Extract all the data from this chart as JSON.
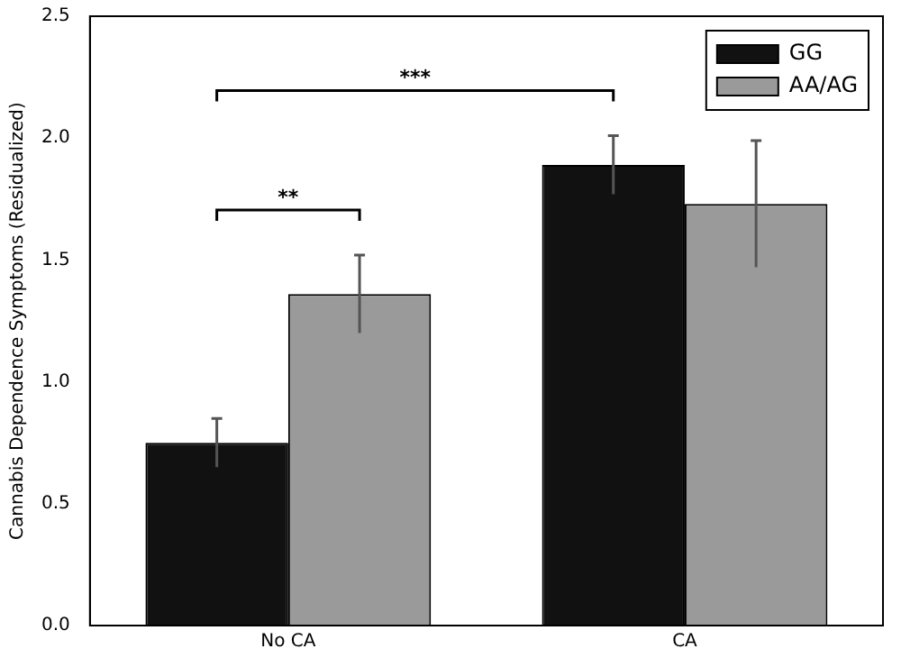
{
  "chart_data": {
    "type": "bar",
    "ylabel": "Cannabis Dependence Symptoms (Residualized)",
    "categories": [
      "No CA",
      "CA"
    ],
    "series": [
      {
        "name": "GG",
        "color": "#111111",
        "values": [
          0.75,
          1.89
        ],
        "errors": [
          0.1,
          0.12
        ]
      },
      {
        "name": "AA/AG",
        "color": "#9a9a9a",
        "values": [
          1.36,
          1.73
        ],
        "errors": [
          0.16,
          0.26
        ]
      }
    ],
    "ylim": [
      0,
      2.5
    ],
    "yticks": [
      {
        "value": 0,
        "label": "0.0"
      },
      {
        "value": 0.5,
        "label": "0.5"
      },
      {
        "value": 1,
        "label": "1.0"
      },
      {
        "value": 1.5,
        "label": "1.5"
      },
      {
        "value": 2,
        "label": "2.0"
      },
      {
        "value": 2.5,
        "label": "2.5"
      }
    ],
    "grid": false,
    "legend": "top right",
    "annotations": [
      "***",
      "**"
    ]
  }
}
